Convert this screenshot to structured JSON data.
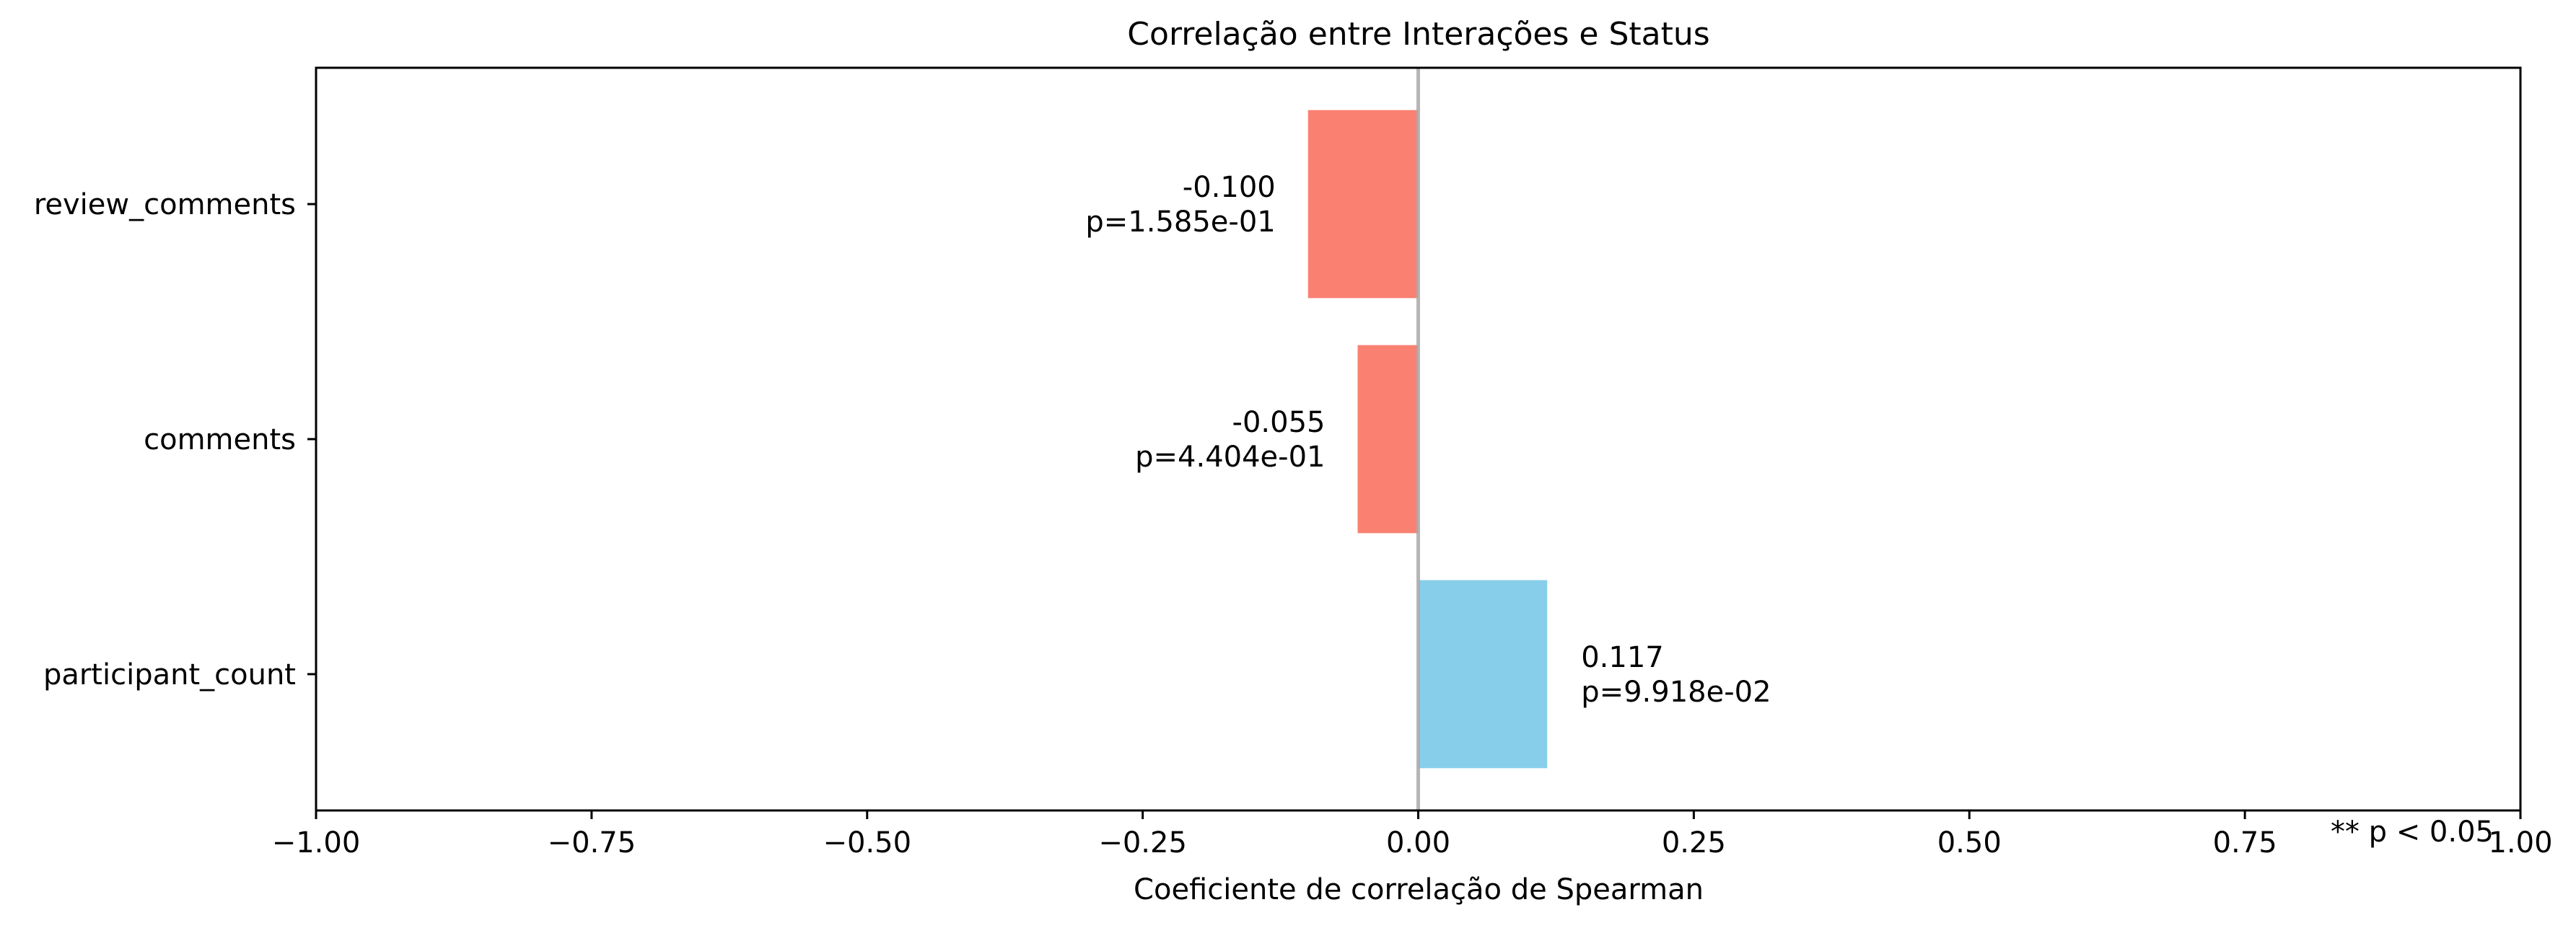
{
  "chart_data": {
    "type": "bar",
    "orientation": "horizontal",
    "title": "Correlação entre Interações e Status",
    "xlabel": "Coeficiente de correlação de Spearman",
    "ylabel": "",
    "xlim": [
      -1.0,
      1.0
    ],
    "x_ticks": [
      -1.0,
      -0.75,
      -0.5,
      -0.25,
      0.0,
      0.25,
      0.5,
      0.75,
      1.0
    ],
    "x_tick_labels": [
      "−1.00",
      "−0.75",
      "−0.50",
      "−0.25",
      "0.00",
      "0.25",
      "0.50",
      "0.75",
      "1.00"
    ],
    "categories": [
      "review_comments",
      "comments",
      "participant_count"
    ],
    "values": [
      -0.1,
      -0.055,
      0.117
    ],
    "value_labels": [
      "-0.100",
      "-0.055",
      "0.117"
    ],
    "p_labels": [
      "p=1.585e-01",
      "p=4.404e-01",
      "p=9.918e-02"
    ],
    "negative_color": "#fa8072",
    "positive_color": "#87ceeb",
    "zero_line_color": "#a9a9a9",
    "grid": false,
    "annotation": "** p < 0.05"
  }
}
